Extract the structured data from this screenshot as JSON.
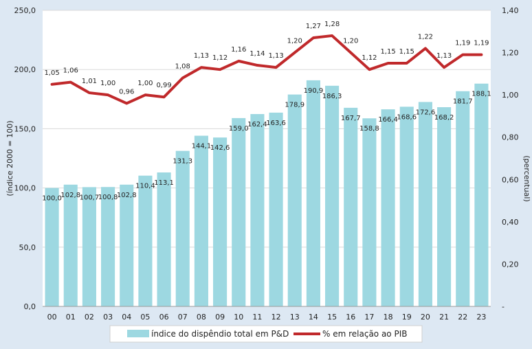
{
  "chart_data": {
    "type": "bar+line",
    "categories": [
      "00",
      "01",
      "02",
      "03",
      "04",
      "05",
      "06",
      "07",
      "08",
      "09",
      "10",
      "11",
      "12",
      "13",
      "14",
      "15",
      "16",
      "17",
      "18",
      "19",
      "20",
      "21",
      "22",
      "23"
    ],
    "series": [
      {
        "name": "índice do dispêndio total em P&D",
        "type": "bar",
        "axis": "left",
        "color": "#9dd8e1",
        "values": [
          100.0,
          102.8,
          100.7,
          100.8,
          102.8,
          110.4,
          113.1,
          131.3,
          144.1,
          142.6,
          159.0,
          162.4,
          163.6,
          178.9,
          190.9,
          186.3,
          167.7,
          158.8,
          166.4,
          168.6,
          172.6,
          168.2,
          181.7,
          188.1
        ],
        "labels": [
          "100,0",
          "102,8",
          "100,7",
          "100,8",
          "102,8",
          "110,4",
          "113,1",
          "131,3",
          "144,1",
          "142,6",
          "159,0",
          "162,4",
          "163,6",
          "178,9",
          "190,9",
          "186,3",
          "167,7",
          "158,8",
          "166,4",
          "168,6",
          "172,6",
          "168,2",
          "181,7",
          "188,1"
        ]
      },
      {
        "name": "% em relação ao PIB",
        "type": "line",
        "axis": "right",
        "color": "#c0292b",
        "values": [
          1.05,
          1.06,
          1.01,
          1.0,
          0.96,
          1.0,
          0.99,
          1.08,
          1.13,
          1.12,
          1.16,
          1.14,
          1.13,
          1.2,
          1.27,
          1.28,
          1.2,
          1.12,
          1.15,
          1.15,
          1.22,
          1.13,
          1.19,
          1.19
        ],
        "labels": [
          "1,05",
          "1,06",
          "1,01",
          "1,00",
          "0,96",
          "1,00",
          "0,99",
          "1,08",
          "1,13",
          "1,12",
          "1,16",
          "1,14",
          "1,13",
          "1,20",
          "1,27",
          "1,28",
          "1,20",
          "1,12",
          "1,15",
          "1,15",
          "1,22",
          "1,13",
          "1,19",
          "1,19"
        ]
      }
    ],
    "y_left": {
      "label": "(índice 2000 = 100)",
      "range": [
        0,
        250
      ],
      "ticks": [
        0,
        50,
        100,
        150,
        200,
        250
      ],
      "tick_labels": [
        "0,0",
        "50,0",
        "100,0",
        "150,0",
        "200,0",
        "250,0"
      ]
    },
    "y_right": {
      "label": "(percentual)",
      "range": [
        0,
        1.4
      ],
      "ticks": [
        0,
        0.2,
        0.4,
        0.6,
        0.8,
        1.0,
        1.2,
        1.4
      ],
      "tick_labels": [
        "-",
        "0,20",
        "0,40",
        "0,60",
        "0,80",
        "1,00",
        "1,20",
        "1,40"
      ]
    },
    "legend": [
      "índice do dispêndio total em P&D",
      "% em relação ao PIB"
    ],
    "legend_position": "bottom"
  },
  "colors": {
    "background": "#dde8f3",
    "plot": "#ffffff",
    "bar": "#9dd8e1",
    "line": "#c0292b"
  }
}
